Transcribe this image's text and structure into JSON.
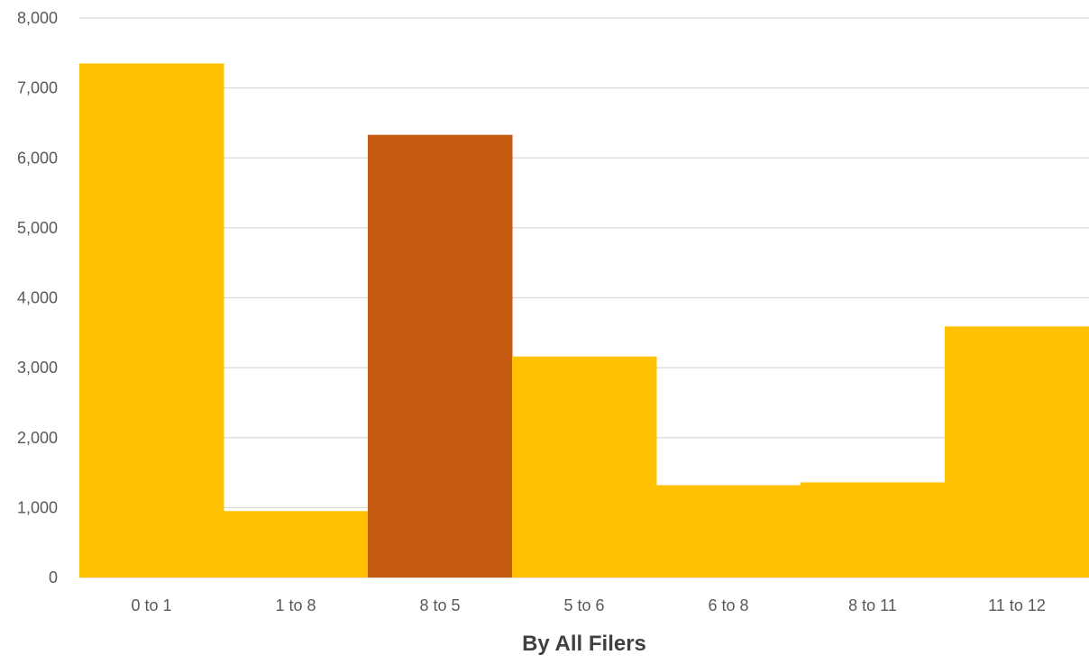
{
  "chart_data": {
    "type": "bar",
    "title": "",
    "xlabel": "By All Filers",
    "ylabel": "",
    "categories": [
      "0 to 1",
      "1 to 8",
      "8 to 5",
      "5 to 6",
      "6 to 8",
      "8 to 11",
      "11 to 12"
    ],
    "values": [
      7350,
      950,
      6330,
      3160,
      1320,
      1360,
      3590
    ],
    "highlight_index": 2,
    "ylim": [
      0,
      8000
    ],
    "y_ticks": [
      0,
      1000,
      2000,
      3000,
      4000,
      5000,
      6000,
      7000,
      8000
    ],
    "y_tick_labels": [
      "0",
      "1,000",
      "2,000",
      "3,000",
      "4,000",
      "5,000",
      "6,000",
      "7,000",
      "8,000"
    ],
    "grid": true,
    "legend": "none",
    "colors": {
      "bar": "#FFC000",
      "highlight": "#C55A11",
      "grid": "#D9D9D9",
      "tick_text": "#595959",
      "axis_title": "#404040"
    }
  }
}
